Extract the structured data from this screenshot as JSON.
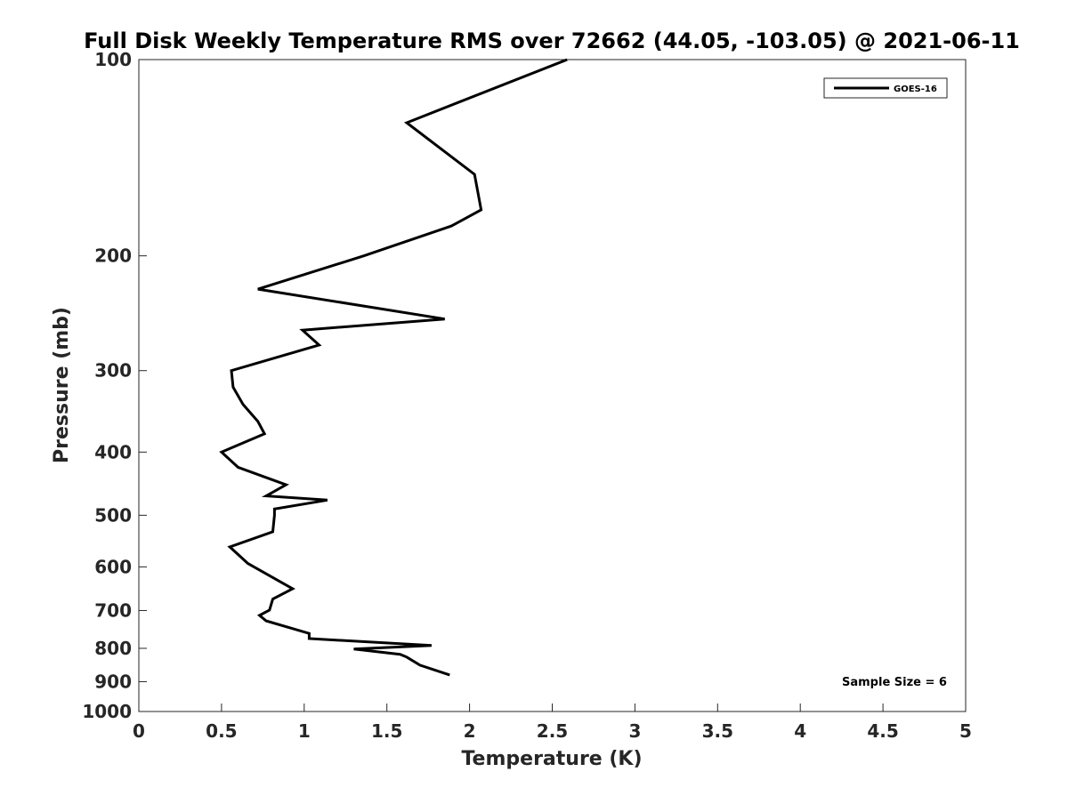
{
  "chart_data": {
    "type": "line",
    "title": "Full Disk Weekly Temperature RMS over 72662 (44.05, -103.05) @ 2021-06-11",
    "xlabel": "Temperature (K)",
    "ylabel": "Pressure (mb)",
    "xlim": [
      0,
      5
    ],
    "ylim": [
      100,
      1000
    ],
    "y_scale": "log",
    "y_reversed": true,
    "x_ticks": [
      "0",
      "0.5",
      "1",
      "1.5",
      "2",
      "2.5",
      "3",
      "3.5",
      "4",
      "4.5",
      "5"
    ],
    "y_ticks": [
      "100",
      "200",
      "300",
      "400",
      "500",
      "600",
      "700",
      "800",
      "900",
      "1000"
    ],
    "grid": false,
    "legend_position": "top-right",
    "series": [
      {
        "name": "GOES-16",
        "color": "#000000",
        "x": [
          2.59,
          1.62,
          2.03,
          2.07,
          1.89,
          1.36,
          0.72,
          1.85,
          0.99,
          1.09,
          0.56,
          0.57,
          0.63,
          0.72,
          0.76,
          0.5,
          0.6,
          0.89,
          0.77,
          1.14,
          0.82,
          0.82,
          0.81,
          0.55,
          0.66,
          0.82,
          0.93,
          0.81,
          0.79,
          0.73,
          0.77,
          1.03,
          1.03,
          1.77,
          1.3,
          1.58,
          1.62,
          1.7,
          1.88
        ],
        "y": [
          100,
          125,
          150,
          170,
          180,
          200,
          225,
          250,
          260,
          274,
          300,
          318,
          338,
          359,
          375,
          400,
          422,
          449,
          467,
          474,
          489,
          500,
          530,
          559,
          593,
          625,
          648,
          672,
          699,
          712,
          726,
          759,
          773,
          792,
          802,
          817,
          825,
          849,
          879
        ]
      }
    ],
    "annotations": [
      "Sample Size = 6"
    ]
  }
}
